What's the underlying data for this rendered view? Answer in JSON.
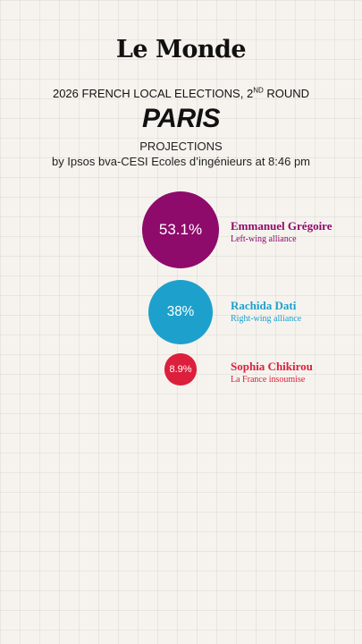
{
  "header": {
    "logo": "Le Monde",
    "title_main": "2026 FRENCH LOCAL ELECTIONS, 2",
    "title_sup": "ND",
    "title_end": " ROUND",
    "city": "PARIS",
    "projections_label": "PROJECTIONS",
    "source": "by Ipsos bva-CESI Ecoles d’ingénieurs at 8:46 pm"
  },
  "candidates": [
    {
      "percent_label": "53.1%",
      "value": 53.1,
      "name": "Emmanuel Grégoire",
      "party": "Left-wing alliance",
      "color": "#8e0a6b"
    },
    {
      "percent_label": "38%",
      "value": 38,
      "name": "Rachida Dati",
      "party": "Right-wing alliance",
      "color": "#1da1cc"
    },
    {
      "percent_label": "8.9%",
      "value": 8.9,
      "name": "Sophia Chikirou",
      "party": "La France insoumise",
      "color": "#dc1f3c"
    }
  ]
}
